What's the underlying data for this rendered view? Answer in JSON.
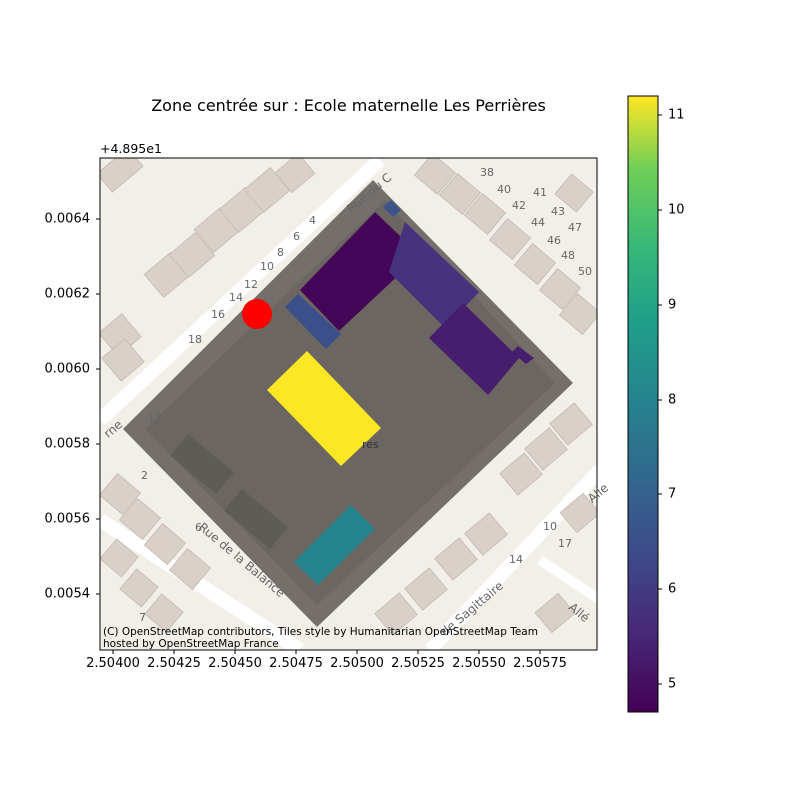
{
  "title": "Zone centrée sur : Ecole maternelle Les Perrières",
  "axes": {
    "offset_label": "+4.895e1",
    "x_ticks": [
      "2.50400",
      "2.50425",
      "2.50450",
      "2.50475",
      "2.50500",
      "2.50525",
      "2.50550",
      "2.50575"
    ],
    "y_ticks": [
      "0.0064",
      "0.0062",
      "0.0060",
      "0.0058",
      "0.0056",
      "0.0054"
    ],
    "xlim": [
      2.50394,
      2.50597
    ],
    "ylim": [
      0.00529,
      0.00657
    ]
  },
  "colorbar": {
    "colormap": "viridis",
    "vmin": 4.7,
    "vmax": 11.2,
    "ticks": [
      "5",
      "6",
      "7",
      "8",
      "9",
      "10",
      "11"
    ]
  },
  "attribution": {
    "line1": "(C) OpenStreetMap contributors, Tiles style by Humanitarian OpenStreetMap Team",
    "line2": "hosted by OpenStreetMap France"
  },
  "basemap": {
    "streets": [
      "Rue du C",
      "Rue de la Balance",
      "de Sagittaire",
      "rne",
      "Alle",
      "Allé"
    ],
    "house_numbers": [
      "38",
      "40",
      "41",
      "42",
      "43",
      "44",
      "46",
      "47",
      "48",
      "50",
      "18",
      "16",
      "14",
      "12",
      "10",
      "8",
      "6",
      "4",
      "17",
      "2",
      "6",
      "7",
      "10",
      "17",
      "14",
      "res"
    ]
  },
  "marker": {
    "color": "#ff0000",
    "label": "school-location"
  },
  "colors": {
    "school_zone": "#6f6a65",
    "basemap_bg": "#f2efe9",
    "building": "#d9d0c9"
  },
  "buildings": [
    {
      "name": "building-yellow",
      "value": 11.2
    },
    {
      "name": "building-teal",
      "value": 8.0
    },
    {
      "name": "building-dark-purple",
      "value": 4.8
    },
    {
      "name": "building-indigo",
      "value": 5.8
    },
    {
      "name": "building-purple",
      "value": 5.3
    },
    {
      "name": "building-blue-small",
      "value": 6.5
    },
    {
      "name": "building-blue-top",
      "value": 6.6
    }
  ]
}
